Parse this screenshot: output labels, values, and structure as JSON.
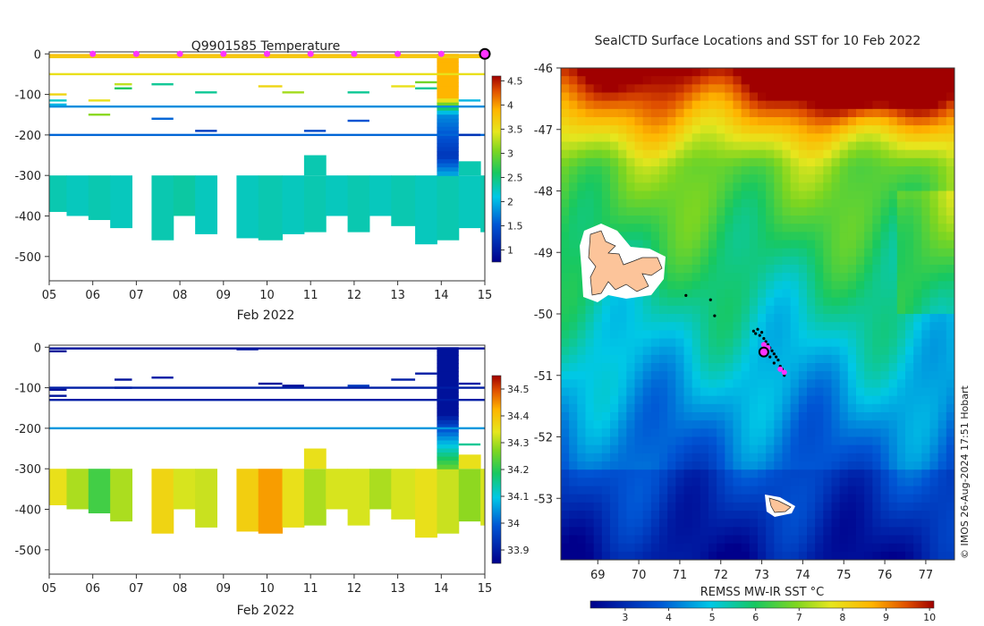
{
  "chart_data": [
    {
      "id": "temperature",
      "type": "heatmap",
      "title": "Q9901585  Temperature",
      "xlabel": "Feb 2022",
      "ylabel": "",
      "x_ticks": [
        "05",
        "06",
        "07",
        "08",
        "09",
        "10",
        "11",
        "12",
        "13",
        "14",
        "15"
      ],
      "x_range": [
        5,
        15
      ],
      "y_range": [
        -560,
        5
      ],
      "y_ticks": [
        0,
        -100,
        -200,
        -300,
        -400,
        -500
      ],
      "colorbar": {
        "min": 0.75,
        "max": 4.6,
        "ticks": [
          "1",
          "1.5",
          "2",
          "2.5",
          "3",
          "3.5",
          "4",
          "4.5"
        ],
        "tick_values": [
          1,
          1.5,
          2,
          2.5,
          3,
          3.5,
          4,
          4.5
        ]
      },
      "profile_markers_day": [
        6.0,
        7.0,
        8.0,
        9.0,
        10.0,
        11.0,
        12.0,
        13.0,
        14.0
      ],
      "current_marker_day": 15.0,
      "deep_profiles": [
        {
          "x0": 5.0,
          "x1": 5.4,
          "bottom": -390,
          "value": 2.3
        },
        {
          "x0": 5.4,
          "x1": 5.9,
          "bottom": -400,
          "value": 2.25
        },
        {
          "x0": 5.9,
          "x1": 6.4,
          "bottom": -410,
          "value": 2.3
        },
        {
          "x0": 6.4,
          "x1": 6.9,
          "bottom": -430,
          "value": 2.25
        },
        {
          "x0": 7.35,
          "x1": 7.85,
          "bottom": -460,
          "value": 2.3
        },
        {
          "x0": 7.85,
          "x1": 8.35,
          "bottom": -400,
          "value": 2.35
        },
        {
          "x0": 8.35,
          "x1": 8.85,
          "bottom": -445,
          "value": 2.25
        },
        {
          "x0": 9.3,
          "x1": 9.8,
          "bottom": -455,
          "value": 2.25
        },
        {
          "x0": 9.8,
          "x1": 10.35,
          "bottom": -460,
          "value": 2.3
        },
        {
          "x0": 10.35,
          "x1": 10.85,
          "bottom": -445,
          "value": 2.25
        },
        {
          "x0": 10.85,
          "x1": 11.35,
          "bottom": -440,
          "value": 2.3
        },
        {
          "x0": 11.35,
          "x1": 11.85,
          "bottom": -400,
          "value": 2.25
        },
        {
          "x0": 11.85,
          "x1": 12.35,
          "bottom": -440,
          "value": 2.3
        },
        {
          "x0": 12.35,
          "x1": 12.85,
          "bottom": -400,
          "value": 2.25
        },
        {
          "x0": 12.85,
          "x1": 13.4,
          "bottom": -425,
          "value": 2.3
        },
        {
          "x0": 13.4,
          "x1": 13.9,
          "bottom": -470,
          "value": 2.25
        },
        {
          "x0": 13.9,
          "x1": 14.4,
          "bottom": -460,
          "value": 2.3
        },
        {
          "x0": 14.4,
          "x1": 14.9,
          "bottom": -430,
          "value": 2.25
        },
        {
          "x0": 14.9,
          "x1": 15.05,
          "bottom": -440,
          "value": 2.3
        }
      ],
      "deep_profile_tops": [
        {
          "x0": 10.85,
          "x1": 11.35,
          "top": -250
        },
        {
          "x0": 14.4,
          "x1": 14.9,
          "top": -265
        }
      ],
      "column_14": {
        "x0": 13.9,
        "x1": 14.4,
        "top": 0,
        "bottom": -300
      },
      "shallow_lines": [
        {
          "x0": 5.0,
          "x1": 15.0,
          "depth": -3,
          "value": 3.8
        },
        {
          "x0": 5.0,
          "x1": 15.0,
          "depth": -8,
          "value": 3.7
        },
        {
          "x0": 5.0,
          "x1": 15.0,
          "depth": -50,
          "value": 3.5
        },
        {
          "x0": 5.0,
          "x1": 15.0,
          "depth": -130,
          "value": 1.8
        },
        {
          "x0": 5.0,
          "x1": 15.0,
          "depth": -200,
          "value": 1.6
        },
        {
          "x0": 5.0,
          "x1": 5.4,
          "depth": -100,
          "value": 3.6
        },
        {
          "x0": 5.0,
          "x1": 5.4,
          "depth": -115,
          "value": 2.2
        },
        {
          "x0": 5.0,
          "x1": 5.4,
          "depth": -125,
          "value": 2.0
        },
        {
          "x0": 6.5,
          "x1": 6.9,
          "depth": -75,
          "value": 3.3
        },
        {
          "x0": 6.5,
          "x1": 6.9,
          "depth": -85,
          "value": 2.6
        },
        {
          "x0": 5.9,
          "x1": 6.4,
          "depth": -115,
          "value": 3.5
        },
        {
          "x0": 5.9,
          "x1": 6.4,
          "depth": -150,
          "value": 3.1
        },
        {
          "x0": 7.35,
          "x1": 7.85,
          "depth": -75,
          "value": 2.4
        },
        {
          "x0": 7.35,
          "x1": 7.85,
          "depth": -160,
          "value": 1.6
        },
        {
          "x0": 8.35,
          "x1": 8.85,
          "depth": -95,
          "value": 2.4
        },
        {
          "x0": 8.35,
          "x1": 8.85,
          "depth": -190,
          "value": 1.3
        },
        {
          "x0": 9.8,
          "x1": 10.35,
          "depth": -80,
          "value": 3.6
        },
        {
          "x0": 10.35,
          "x1": 10.85,
          "depth": -95,
          "value": 3.2
        },
        {
          "x0": 10.85,
          "x1": 11.35,
          "depth": -190,
          "value": 1.4
        },
        {
          "x0": 11.85,
          "x1": 12.35,
          "depth": -95,
          "value": 2.4
        },
        {
          "x0": 11.85,
          "x1": 12.35,
          "depth": -165,
          "value": 1.5
        },
        {
          "x0": 12.85,
          "x1": 13.4,
          "depth": -80,
          "value": 3.5
        },
        {
          "x0": 13.4,
          "x1": 13.9,
          "depth": -70,
          "value": 3.0
        },
        {
          "x0": 13.4,
          "x1": 13.9,
          "depth": -85,
          "value": 2.4
        },
        {
          "x0": 14.4,
          "x1": 14.9,
          "depth": -115,
          "value": 2.0
        },
        {
          "x0": 14.4,
          "x1": 14.9,
          "depth": -200,
          "value": 1.2
        }
      ]
    },
    {
      "id": "salinity",
      "type": "heatmap",
      "title": "",
      "xlabel": "Feb 2022",
      "ylabel": "",
      "x_ticks": [
        "05",
        "06",
        "07",
        "08",
        "09",
        "10",
        "11",
        "12",
        "13",
        "14",
        "15"
      ],
      "x_range": [
        5,
        15
      ],
      "y_range": [
        -560,
        5
      ],
      "y_ticks": [
        0,
        -100,
        -200,
        -300,
        -400,
        -500
      ],
      "colorbar": {
        "min": 33.85,
        "max": 34.55,
        "ticks": [
          "33.9",
          "34",
          "34.1",
          "34.2",
          "34.3",
          "34.4",
          "34.5"
        ],
        "tick_values": [
          33.9,
          34.0,
          34.1,
          34.2,
          34.3,
          34.4,
          34.5
        ]
      },
      "deep_profiles": [
        {
          "x0": 5.0,
          "x1": 5.4,
          "bottom": -390,
          "value": 34.35
        },
        {
          "x0": 5.4,
          "x1": 5.9,
          "bottom": -400,
          "value": 34.3
        },
        {
          "x0": 5.9,
          "x1": 6.4,
          "bottom": -410,
          "value": 34.22
        },
        {
          "x0": 6.4,
          "x1": 6.9,
          "bottom": -430,
          "value": 34.3
        },
        {
          "x0": 7.35,
          "x1": 7.85,
          "bottom": -460,
          "value": 34.37
        },
        {
          "x0": 7.85,
          "x1": 8.35,
          "bottom": -400,
          "value": 34.33
        },
        {
          "x0": 8.35,
          "x1": 8.85,
          "bottom": -445,
          "value": 34.32
        },
        {
          "x0": 9.3,
          "x1": 9.8,
          "bottom": -455,
          "value": 34.38
        },
        {
          "x0": 9.8,
          "x1": 10.35,
          "bottom": -460,
          "value": 34.44
        },
        {
          "x0": 10.35,
          "x1": 10.85,
          "bottom": -445,
          "value": 34.35
        },
        {
          "x0": 10.85,
          "x1": 11.35,
          "bottom": -440,
          "value": 34.3
        },
        {
          "x0": 11.35,
          "x1": 11.85,
          "bottom": -400,
          "value": 34.33
        },
        {
          "x0": 11.85,
          "x1": 12.35,
          "bottom": -440,
          "value": 34.33
        },
        {
          "x0": 12.35,
          "x1": 12.85,
          "bottom": -400,
          "value": 34.3
        },
        {
          "x0": 12.85,
          "x1": 13.4,
          "bottom": -425,
          "value": 34.33
        },
        {
          "x0": 13.4,
          "x1": 13.9,
          "bottom": -470,
          "value": 34.35
        },
        {
          "x0": 13.9,
          "x1": 14.4,
          "bottom": -460,
          "value": 34.32
        },
        {
          "x0": 14.4,
          "x1": 14.9,
          "bottom": -430,
          "value": 34.28
        },
        {
          "x0": 14.9,
          "x1": 15.05,
          "bottom": -440,
          "value": 34.33
        }
      ],
      "deep_profile_tops": [
        {
          "x0": 10.85,
          "x1": 11.35,
          "top": -250
        },
        {
          "x0": 14.4,
          "x1": 14.9,
          "top": -265
        }
      ],
      "column_14": {
        "x0": 13.9,
        "x1": 14.4,
        "top": 0,
        "bottom": -300
      },
      "shallow_lines": [
        {
          "x0": 5.0,
          "x1": 15.0,
          "depth": -3,
          "value": 33.88
        },
        {
          "x0": 5.0,
          "x1": 15.0,
          "depth": -100,
          "value": 33.9
        },
        {
          "x0": 5.0,
          "x1": 15.0,
          "depth": -130,
          "value": 33.9
        },
        {
          "x0": 5.0,
          "x1": 15.0,
          "depth": -200,
          "value": 34.05
        },
        {
          "x0": 5.0,
          "x1": 5.4,
          "depth": -10,
          "value": 33.88
        },
        {
          "x0": 5.0,
          "x1": 5.4,
          "depth": -105,
          "value": 33.88
        },
        {
          "x0": 5.0,
          "x1": 5.4,
          "depth": -120,
          "value": 33.88
        },
        {
          "x0": 6.5,
          "x1": 6.9,
          "depth": -80,
          "value": 33.88
        },
        {
          "x0": 6.5,
          "x1": 6.9,
          "depth": -100,
          "value": 33.9
        },
        {
          "x0": 7.35,
          "x1": 7.85,
          "depth": -75,
          "value": 33.9
        },
        {
          "x0": 9.3,
          "x1": 9.8,
          "depth": -5,
          "value": 33.88
        },
        {
          "x0": 9.8,
          "x1": 10.35,
          "depth": -90,
          "value": 33.88
        },
        {
          "x0": 10.35,
          "x1": 10.85,
          "depth": -95,
          "value": 33.88
        },
        {
          "x0": 11.85,
          "x1": 12.35,
          "depth": -95,
          "value": 33.95
        },
        {
          "x0": 12.85,
          "x1": 13.4,
          "depth": -80,
          "value": 33.9
        },
        {
          "x0": 13.4,
          "x1": 13.9,
          "depth": -65,
          "value": 33.9
        },
        {
          "x0": 14.4,
          "x1": 14.9,
          "depth": -90,
          "value": 33.9
        },
        {
          "x0": 14.4,
          "x1": 14.9,
          "depth": -240,
          "value": 34.15
        }
      ]
    },
    {
      "id": "sst-map",
      "type": "heatmap",
      "title": "SealCTD Surface Locations and SST for 10 Feb 2022",
      "xlabel": "REMSS MW-IR SST °C",
      "ylabel": "",
      "lon_range": [
        68.1,
        77.7
      ],
      "lat_range": [
        -54.0,
        -46.0
      ],
      "lon_ticks": [
        "69",
        "70",
        "71",
        "72",
        "73",
        "74",
        "75",
        "76",
        "77"
      ],
      "lon_tick_values": [
        69,
        70,
        71,
        72,
        73,
        74,
        75,
        76,
        77
      ],
      "lat_ticks": [
        "-46",
        "-47",
        "-48",
        "-49",
        "-50",
        "-51",
        "-52",
        "-53"
      ],
      "lat_tick_values": [
        -46,
        -47,
        -48,
        -49,
        -50,
        -51,
        -52,
        -53
      ],
      "colorbar": {
        "min": 2.2,
        "max": 10.1,
        "ticks": [
          "3",
          "4",
          "5",
          "6",
          "7",
          "8",
          "9",
          "10"
        ],
        "tick_values": [
          3,
          4,
          5,
          6,
          7,
          8,
          9,
          10
        ]
      },
      "seal_track": [
        {
          "lon": 71.15,
          "lat": -49.7
        },
        {
          "lon": 71.75,
          "lat": -49.77
        },
        {
          "lon": 71.85,
          "lat": -50.03
        },
        {
          "lon": 72.8,
          "lat": -50.28
        },
        {
          "lon": 72.85,
          "lat": -50.32
        },
        {
          "lon": 72.9,
          "lat": -50.25
        },
        {
          "lon": 72.95,
          "lat": -50.35
        },
        {
          "lon": 73.0,
          "lat": -50.3
        },
        {
          "lon": 73.05,
          "lat": -50.4
        },
        {
          "lon": 73.1,
          "lat": -50.45
        },
        {
          "lon": 73.15,
          "lat": -50.5
        },
        {
          "lon": 73.2,
          "lat": -50.55
        },
        {
          "lon": 73.25,
          "lat": -50.6
        },
        {
          "lon": 73.3,
          "lat": -50.65
        },
        {
          "lon": 73.35,
          "lat": -50.7
        },
        {
          "lon": 73.4,
          "lat": -50.75
        },
        {
          "lon": 73.3,
          "lat": -50.8
        },
        {
          "lon": 73.45,
          "lat": -50.85
        },
        {
          "lon": 73.5,
          "lat": -50.9
        },
        {
          "lon": 73.55,
          "lat": -51.0
        },
        {
          "lon": 73.05,
          "lat": -50.55
        },
        {
          "lon": 73.1,
          "lat": -50.65
        },
        {
          "lon": 73.2,
          "lat": -50.7
        }
      ],
      "profile_locations": [
        {
          "lon": 73.05,
          "lat": -50.5
        },
        {
          "lon": 73.15,
          "lat": -50.55
        },
        {
          "lon": 73.1,
          "lat": -50.62
        },
        {
          "lon": 73.45,
          "lat": -50.9
        },
        {
          "lon": 73.55,
          "lat": -50.95
        }
      ],
      "current_location": {
        "lon": 73.05,
        "lat": -50.62
      }
    }
  ],
  "credit": "© IMOS 26-Aug-2024 17:51 Hobart"
}
